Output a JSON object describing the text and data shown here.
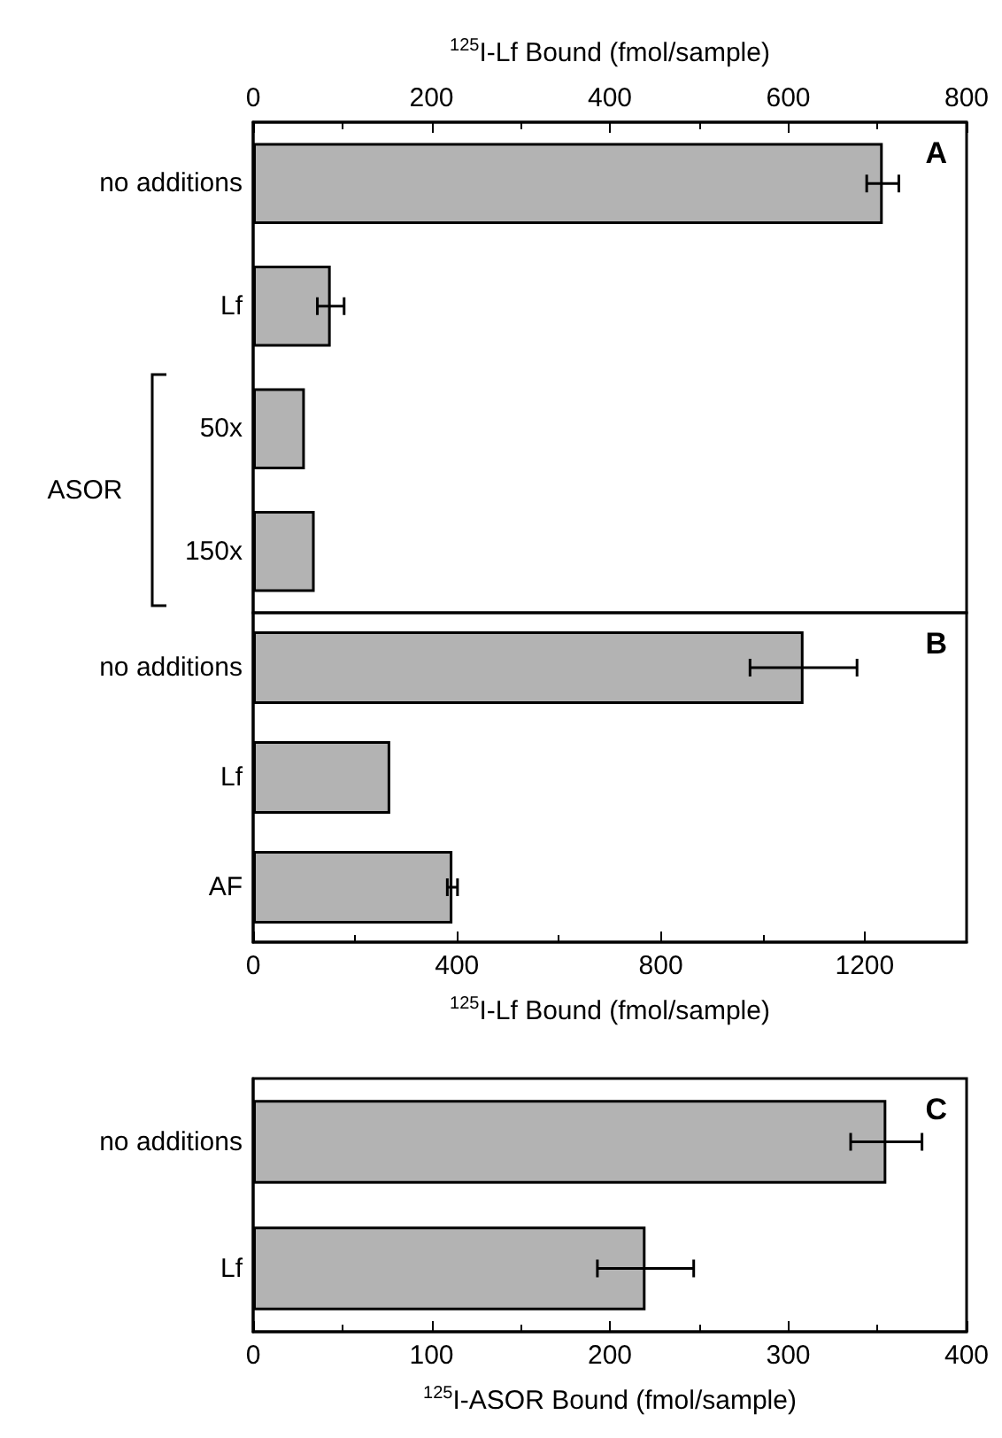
{
  "chart_data": [
    {
      "type": "bar",
      "title": "A",
      "orientation": "horizontal",
      "categories": [
        "no additions",
        "Lf",
        "50x",
        "150x"
      ],
      "series": [
        {
          "axis": "x2",
          "color": "#b3b3b3",
          "values": [
            706,
            87,
            58,
            69
          ],
          "errors": [
            18,
            15,
            null,
            null
          ]
        }
      ],
      "x2lim": [
        0,
        800
      ],
      "x2ticks": [
        0,
        200,
        400,
        600,
        800
      ],
      "x2label": "$^{125}$I-Lf Bound (fmol/sample)",
      "annotations": [
        "ASOR"
      ]
    },
    {
      "type": "bar",
      "title": "B",
      "orientation": "horizontal",
      "categories": [
        "no additions",
        "Lf",
        "AF"
      ],
      "values": [
        1080,
        269,
        391
      ],
      "errors": [
        105,
        null,
        10
      ],
      "color": "#b3b3b3",
      "xlim": [
        0,
        1400
      ],
      "xticks": [
        0,
        400,
        800,
        1200
      ],
      "xlabel": "$^{125}$I-Lf Bound (fmol/sample)"
    },
    {
      "type": "bar",
      "title": "C",
      "orientation": "horizontal",
      "categories": [
        "no additions",
        "Lf"
      ],
      "values": [
        355,
        220
      ],
      "errors": [
        20,
        27
      ],
      "color": "#b3b3b3",
      "xlim": [
        0,
        400
      ],
      "xticks": [
        0,
        100,
        200,
        300,
        400
      ],
      "xlabel": "$^{125}$I-ASOR Bound (fmol/sample)"
    }
  ]
}
